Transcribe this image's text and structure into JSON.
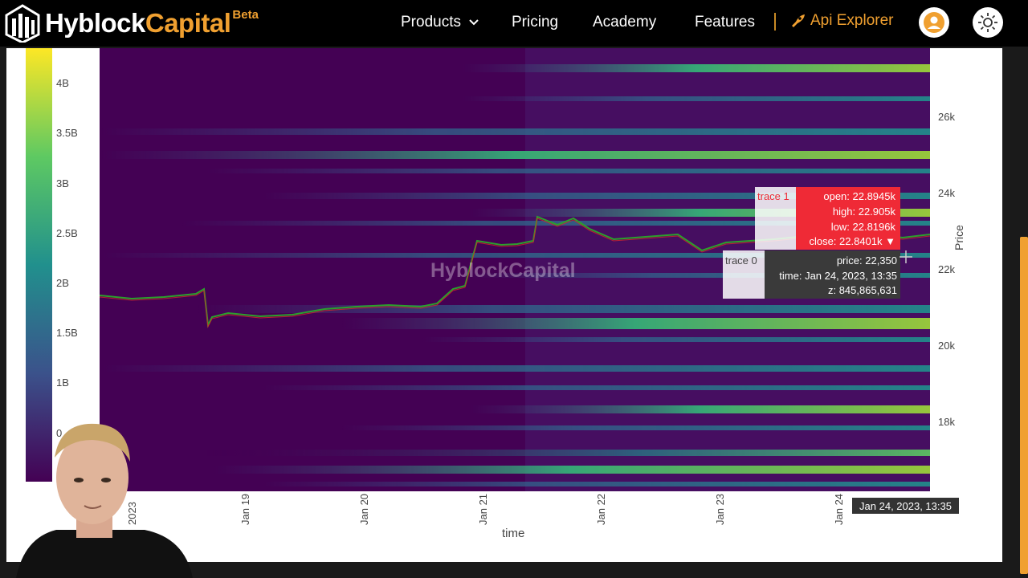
{
  "nav": {
    "brand_primary": "Hyblock",
    "brand_secondary": "Capital",
    "beta": "Beta",
    "items": [
      {
        "label": "Products"
      },
      {
        "label": "Pricing"
      },
      {
        "label": "Academy"
      },
      {
        "label": "Features"
      }
    ],
    "api_label": "Api Explorer"
  },
  "chart": {
    "watermark": "HyblockCapital",
    "colorbar_ticks": [
      "4B",
      "3.5B",
      "3B",
      "2.5B",
      "2B",
      "1.5B",
      "1B",
      "0"
    ],
    "y_ticks": [
      "26k",
      "24k",
      "22k",
      "20k",
      "18k"
    ],
    "y_title": "Price",
    "x_ticks": [
      "2023",
      "Jan 19",
      "Jan 20",
      "Jan 21",
      "Jan 22",
      "Jan 23",
      "Jan 24"
    ],
    "x_title": "time",
    "x_hover": "Jan 24, 2023, 13:35"
  },
  "tooltip_candle": {
    "trace": "trace 1",
    "open": "open: 22.8945k",
    "high": "high: 22.905k",
    "low": "low: 22.8196k",
    "close": "close: 22.8401k ▼"
  },
  "tooltip_heat": {
    "trace": "trace 0",
    "price": "price: 22,350",
    "time": "time: Jan 24, 2023, 13:35",
    "z": "z: 845,865,631"
  },
  "colors": {
    "accent": "#f0a030",
    "tooltip_red": "#ef2a36",
    "heat_low": "#440154",
    "heat_high": "#fde725"
  }
}
